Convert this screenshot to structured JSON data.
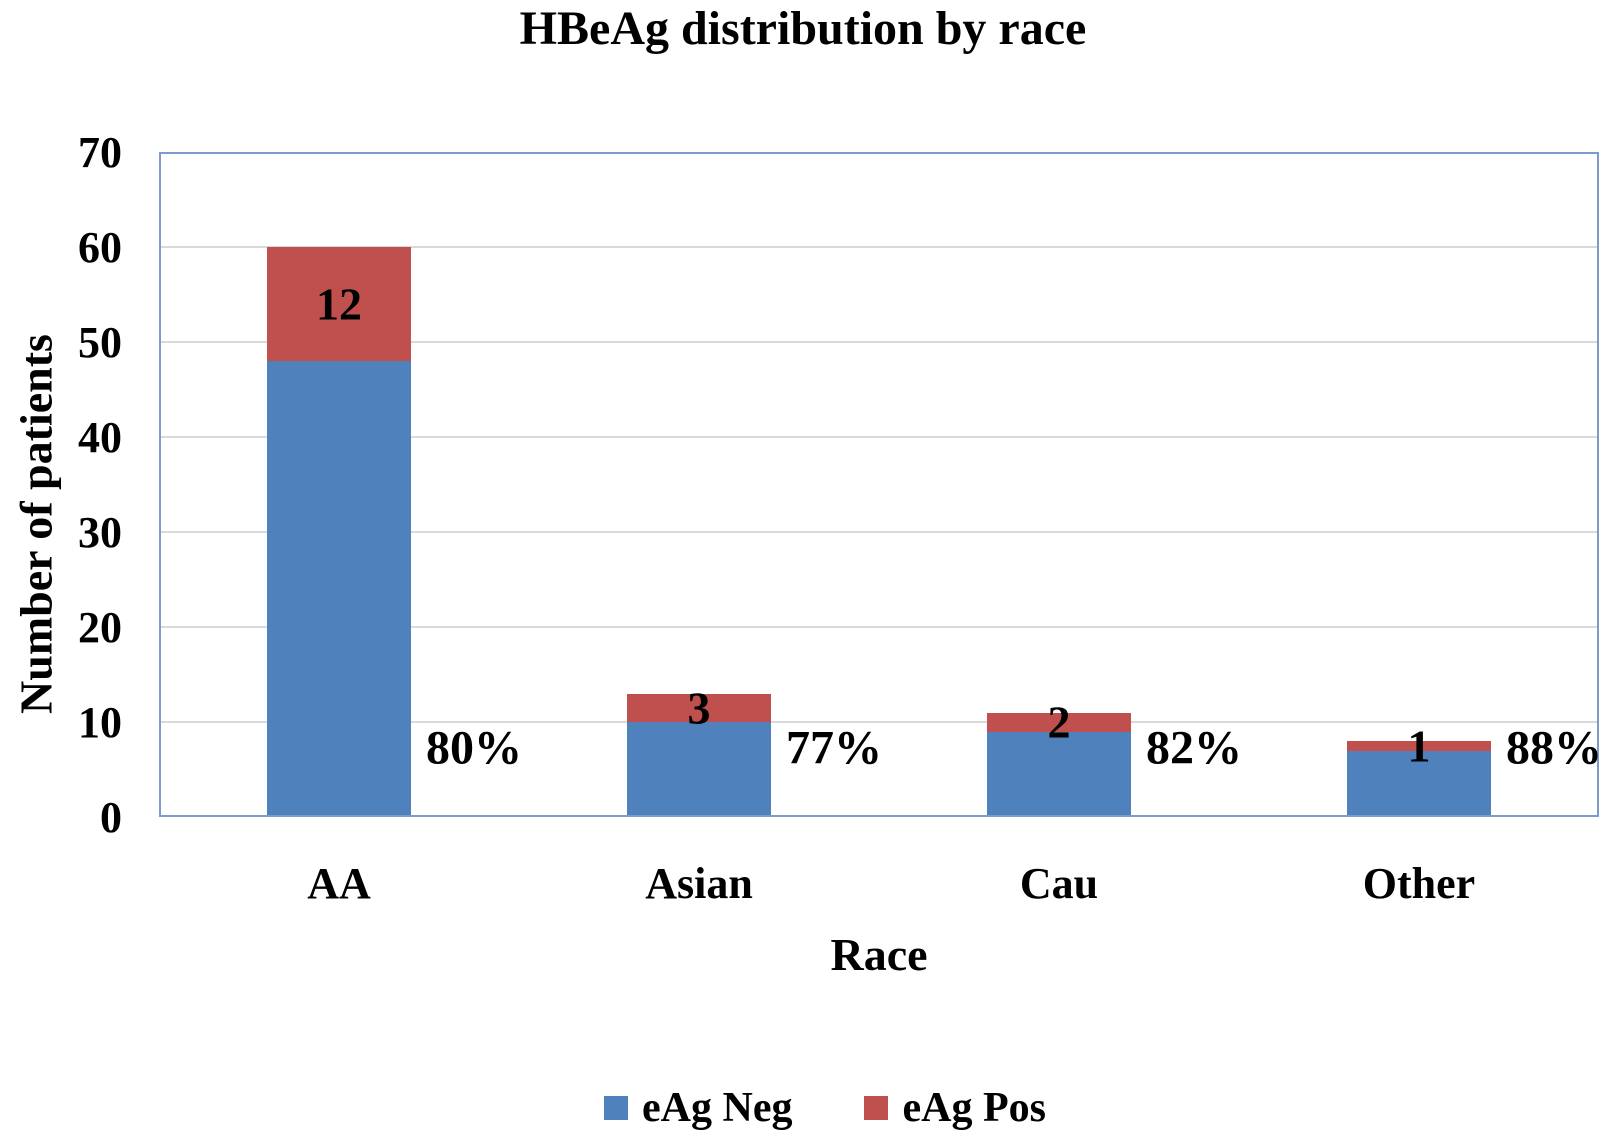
{
  "chart_data": {
    "type": "bar",
    "stacked": true,
    "title": "HBeAg distribution by race",
    "xlabel": "Race",
    "ylabel": "Number of patients",
    "categories": [
      "AA",
      "Asian",
      "Cau",
      "Other"
    ],
    "series": [
      {
        "name": "eAg Neg",
        "color": "#4F81BD",
        "values": [
          48,
          10,
          9,
          7
        ]
      },
      {
        "name": "eAg Pos",
        "color": "#C0504D",
        "values": [
          12,
          3,
          2,
          1
        ]
      }
    ],
    "stack_totals": [
      60,
      13,
      11,
      8
    ],
    "pos_segment_labels": [
      "12",
      "3",
      "2",
      "1"
    ],
    "pct_annotations": {
      "labels": [
        "80%",
        "77%",
        "82%",
        "88%"
      ],
      "y_value": 7.3
    },
    "ylim": [
      0,
      70
    ],
    "yticks": [
      0,
      10,
      20,
      30,
      40,
      50,
      60,
      70
    ],
    "grid": true,
    "legend_position": "bottom",
    "colors": {
      "plot_border": "#7C9DCB",
      "gridline": "#D9D9D9",
      "axis_line": "#D4D4D4",
      "text": "#000000",
      "background": "#FFFFFF"
    }
  }
}
